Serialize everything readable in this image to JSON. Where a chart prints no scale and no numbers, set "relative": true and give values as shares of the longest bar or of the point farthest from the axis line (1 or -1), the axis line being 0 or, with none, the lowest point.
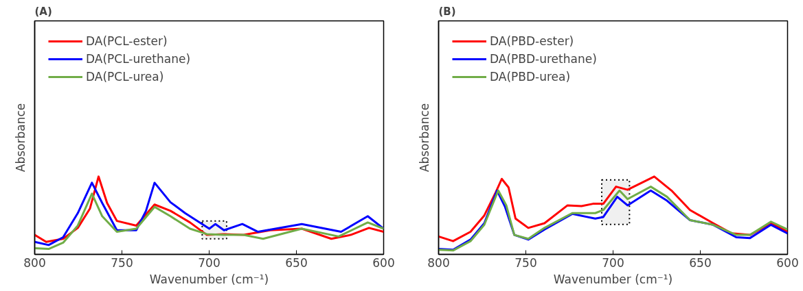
{
  "chart_data": [
    {
      "type": "line",
      "title": "(A)",
      "xlabel": "Wavenumber (cm⁻¹)",
      "ylabel": "Absorbance",
      "relative": true,
      "xlim": [
        800,
        600
      ],
      "xticks": [
        800,
        750,
        700,
        650,
        600
      ],
      "tick_labels": "x",
      "grid": false,
      "legend": "top left",
      "bands": [
        {
          "axis": "x",
          "from": 704,
          "to": 690,
          "color": "#000000"
        }
      ],
      "series": [
        {
          "name": "DA(PCL-ester)",
          "color": "#ff0000",
          "x": [
            800,
            793.4,
            783.7,
            775.3,
            768.3,
            763.4,
            758.5,
            752.9,
            741.8,
            731.3,
            722.2,
            711.0,
            701.3,
            691.5,
            680.3,
            665.0,
            646.9,
            630.0,
            618.9,
            608.4,
            600
          ],
          "values": [
            0.25,
            0.16,
            0.2,
            0.34,
            0.59,
            1.0,
            0.66,
            0.43,
            0.37,
            0.64,
            0.56,
            0.41,
            0.25,
            0.26,
            0.25,
            0.31,
            0.33,
            0.2,
            0.25,
            0.34,
            0.29
          ]
        },
        {
          "name": "DA(PCL-urethane)",
          "color": "#0000ff",
          "x": [
            800,
            792.0,
            783.7,
            775.3,
            767.2,
            761.3,
            752.9,
            741.8,
            736.2,
            731.3,
            722.2,
            713.8,
            705.4,
            699.9,
            696.4,
            691.5,
            681.0,
            672.0,
            646.9,
            624.4,
            609.1,
            600
          ],
          "values": [
            0.16,
            0.12,
            0.22,
            0.53,
            0.92,
            0.66,
            0.31,
            0.31,
            0.56,
            0.92,
            0.67,
            0.53,
            0.41,
            0.33,
            0.39,
            0.31,
            0.39,
            0.29,
            0.39,
            0.29,
            0.49,
            0.33
          ]
        },
        {
          "name": "DA(PCL-urea)",
          "color": "#70ad47",
          "x": [
            800,
            792.0,
            783.7,
            775.3,
            767.2,
            761.3,
            752.9,
            741.8,
            731.3,
            722.2,
            711.0,
            701.3,
            691.5,
            680.3,
            669.1,
            646.9,
            625.8,
            609.1,
            600
          ],
          "values": [
            0.08,
            0.07,
            0.15,
            0.37,
            0.78,
            0.49,
            0.29,
            0.33,
            0.61,
            0.49,
            0.33,
            0.26,
            0.25,
            0.25,
            0.2,
            0.33,
            0.23,
            0.41,
            0.33
          ]
        }
      ]
    },
    {
      "type": "line",
      "title": "(B)",
      "xlabel": "Wavenumber (cm⁻¹)",
      "ylabel": "Absorbance",
      "relative": true,
      "xlim": [
        800,
        600
      ],
      "xticks": [
        800,
        750,
        700,
        650,
        600
      ],
      "tick_labels": "x",
      "grid": false,
      "legend": "top left",
      "bands": [
        {
          "axis": "x",
          "from": 706.5,
          "to": 690.6,
          "color": "#000000"
        }
      ],
      "series": [
        {
          "name": "DA(PBD-ester)",
          "color": "#ff0000",
          "x": [
            800,
            791.7,
            781.7,
            773.8,
            767.2,
            763.8,
            759.9,
            755.9,
            748.6,
            739.3,
            726.1,
            718.1,
            711.5,
            705.6,
            698.3,
            691.7,
            676.4,
            666.5,
            655.9,
            642.6,
            632.0,
            621.5,
            609.5,
            600
          ],
          "values": [
            0.23,
            0.17,
            0.29,
            0.5,
            0.8,
            0.97,
            0.86,
            0.46,
            0.34,
            0.4,
            0.63,
            0.62,
            0.65,
            0.65,
            0.87,
            0.83,
            1.0,
            0.82,
            0.57,
            0.4,
            0.27,
            0.25,
            0.4,
            0.29
          ]
        },
        {
          "name": "DA(PBD-urethane)",
          "color": "#0000ff",
          "x": [
            800,
            791.7,
            781.7,
            773.8,
            766.5,
            761.9,
            756.6,
            748.6,
            739.3,
            723.4,
            710.2,
            705.6,
            697.6,
            691.7,
            678.4,
            669.1,
            655.9,
            642.6,
            629.4,
            621.5,
            609.5,
            600
          ],
          "values": [
            0.07,
            0.06,
            0.19,
            0.4,
            0.82,
            0.61,
            0.25,
            0.19,
            0.32,
            0.52,
            0.46,
            0.48,
            0.74,
            0.63,
            0.82,
            0.69,
            0.44,
            0.38,
            0.22,
            0.21,
            0.38,
            0.27
          ]
        },
        {
          "name": "DA(PBD-urea)",
          "color": "#70ad47",
          "x": [
            800,
            791.7,
            781.7,
            773.8,
            765.8,
            761.2,
            756.6,
            748.6,
            739.3,
            723.4,
            710.2,
            705.6,
            696.3,
            691.7,
            678.4,
            669.1,
            655.9,
            642.6,
            629.4,
            621.5,
            609.5,
            600
          ],
          "values": [
            0.06,
            0.05,
            0.17,
            0.38,
            0.82,
            0.63,
            0.25,
            0.2,
            0.34,
            0.53,
            0.53,
            0.57,
            0.82,
            0.71,
            0.87,
            0.74,
            0.44,
            0.38,
            0.25,
            0.25,
            0.42,
            0.32
          ]
        }
      ]
    }
  ]
}
